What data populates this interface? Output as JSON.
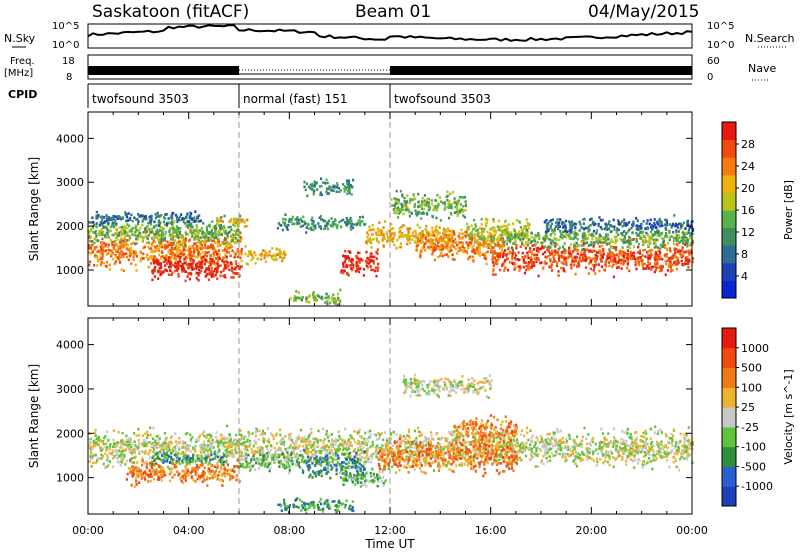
{
  "header": {
    "station": "Saskatoon (fitACF)",
    "beam": "Beam 01",
    "date": "04/May/2015"
  },
  "status_rows": {
    "nsky_label": "N.Sky",
    "nsky_ticks": [
      "10^5",
      "10^0"
    ],
    "nsearch_label": "N.Search",
    "nsearch_ticks": [
      "10^5",
      "10^0"
    ],
    "freq_label": "Freq.",
    "freq_unit": "[MHz]",
    "freq_ticks": [
      "18",
      "8"
    ],
    "nave_label": "Nave",
    "nave_ticks": [
      "60",
      "0"
    ],
    "cpid_label": "CPID",
    "cpid_segments": [
      {
        "label": "twofsound 3503",
        "start_hour": 0,
        "end_hour": 6
      },
      {
        "label": "normal (fast) 151",
        "start_hour": 6,
        "end_hour": 12
      },
      {
        "label": "twofsound 3503",
        "start_hour": 12,
        "end_hour": 24
      }
    ]
  },
  "chart_data": [
    {
      "type": "heatmap",
      "ylabel": "Slant Range [km]",
      "xlabel": "Time UT",
      "x_range_hours": [
        0,
        24
      ],
      "xtick_labels": [
        "00:00",
        "04:00",
        "08:00",
        "12:00",
        "16:00",
        "20:00",
        "00:00"
      ],
      "ylim": [
        180,
        4600
      ],
      "yticks": [
        1000,
        2000,
        3000,
        4000
      ],
      "colorbar": {
        "label": "Power [dB]",
        "ticks": [
          "4",
          "8",
          "12",
          "16",
          "20",
          "24",
          "28"
        ],
        "colors": [
          "#0a24d4",
          "#1f3fb8",
          "#2e6e94",
          "#3d8f5e",
          "#58b14a",
          "#b8c41a",
          "#f0b20a",
          "#f47c10",
          "#f04a10",
          "#e51a10"
        ]
      },
      "bands": [
        {
          "t0": 0.0,
          "t1": 6.1,
          "center": 1500,
          "width": 700,
          "level": 7
        },
        {
          "t0": 0.0,
          "t1": 6.0,
          "center": 1900,
          "width": 500,
          "level": 4
        },
        {
          "t0": 0.0,
          "t1": 4.5,
          "center": 2200,
          "width": 250,
          "level": 2
        },
        {
          "t0": 2.5,
          "t1": 6.0,
          "center": 1100,
          "width": 500,
          "level": 9
        },
        {
          "t0": 5.0,
          "t1": 6.3,
          "center": 2150,
          "width": 200,
          "level": 6
        },
        {
          "t0": 6.2,
          "t1": 7.8,
          "center": 1350,
          "width": 300,
          "level": 6
        },
        {
          "t0": 7.5,
          "t1": 11.0,
          "center": 2100,
          "width": 300,
          "level": 3
        },
        {
          "t0": 8.5,
          "t1": 10.5,
          "center": 2900,
          "width": 300,
          "level": 3
        },
        {
          "t0": 10.0,
          "t1": 11.5,
          "center": 1200,
          "width": 500,
          "level": 9
        },
        {
          "t0": 11.0,
          "t1": 14.5,
          "center": 1800,
          "width": 500,
          "level": 6
        },
        {
          "t0": 12.0,
          "t1": 15.0,
          "center": 2500,
          "width": 500,
          "level": 4
        },
        {
          "t0": 13.0,
          "t1": 16.5,
          "center": 1600,
          "width": 600,
          "level": 7
        },
        {
          "t0": 15.0,
          "t1": 17.5,
          "center": 1900,
          "width": 500,
          "level": 5
        },
        {
          "t0": 16.0,
          "t1": 24.0,
          "center": 1300,
          "width": 600,
          "level": 8
        },
        {
          "t0": 16.5,
          "t1": 24.0,
          "center": 1750,
          "width": 400,
          "level": 4
        },
        {
          "t0": 18.0,
          "t1": 24.0,
          "center": 2050,
          "width": 300,
          "level": 2
        },
        {
          "t0": 8.0,
          "t1": 10.0,
          "center": 400,
          "width": 250,
          "level": 4
        }
      ]
    },
    {
      "type": "heatmap",
      "ylabel": "Slant Range [km]",
      "xlabel": "Time UT",
      "x_range_hours": [
        0,
        24
      ],
      "xtick_labels": [
        "00:00",
        "04:00",
        "08:00",
        "12:00",
        "16:00",
        "20:00",
        "00:00"
      ],
      "ylim": [
        180,
        4600
      ],
      "yticks": [
        1000,
        2000,
        3000,
        4000
      ],
      "colorbar": {
        "label": "Velocity [m s^-1]",
        "ticks": [
          "1000",
          "500",
          "100",
          "25",
          "-25",
          "-100",
          "-500",
          "-1000"
        ],
        "colors": [
          "#1a3fb8",
          "#2a5fd4",
          "#2f8f3e",
          "#5fc43a",
          "#c8c8c8",
          "#f0b030",
          "#f07a18",
          "#f04a10",
          "#e51a10"
        ]
      },
      "bands": [
        {
          "t0": 0.0,
          "t1": 24.0,
          "center": 1700,
          "width": 700,
          "level": 4
        },
        {
          "t0": 1.5,
          "t1": 6.0,
          "center": 1150,
          "width": 450,
          "level": 6
        },
        {
          "t0": 2.5,
          "t1": 5.5,
          "center": 1450,
          "width": 250,
          "level": 2
        },
        {
          "t0": 6.0,
          "t1": 8.5,
          "center": 1400,
          "width": 400,
          "level": 3
        },
        {
          "t0": 8.5,
          "t1": 11.0,
          "center": 1300,
          "width": 500,
          "level": 2
        },
        {
          "t0": 10.0,
          "t1": 11.8,
          "center": 1050,
          "width": 400,
          "level": 3
        },
        {
          "t0": 11.5,
          "t1": 17.0,
          "center": 1500,
          "width": 600,
          "level": 6
        },
        {
          "t0": 14.5,
          "t1": 17.0,
          "center": 2100,
          "width": 500,
          "level": 6
        },
        {
          "t0": 7.5,
          "t1": 10.5,
          "center": 400,
          "width": 250,
          "level": 2
        },
        {
          "t0": 12.5,
          "t1": 16.0,
          "center": 3100,
          "width": 400,
          "level": 4
        }
      ]
    }
  ]
}
